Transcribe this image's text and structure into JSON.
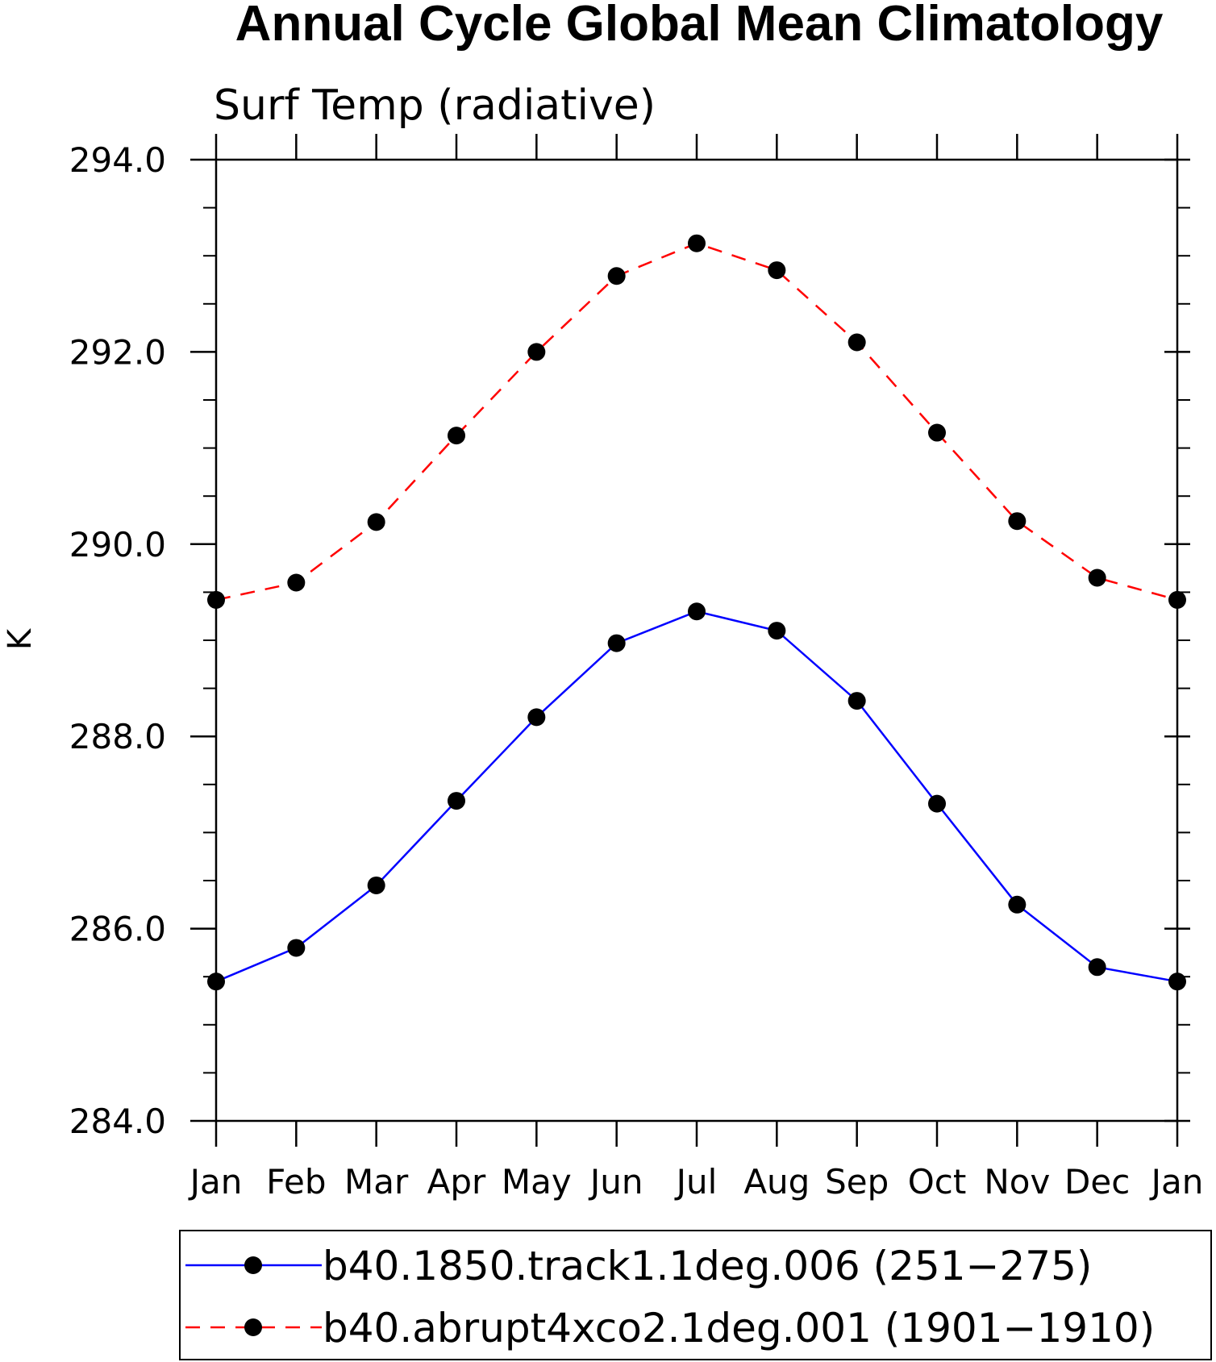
{
  "chart_data": {
    "type": "line",
    "title": "Annual Cycle Global Mean Climatology",
    "subtitle": "Surf Temp (radiative)",
    "xlabel": "",
    "ylabel": "K",
    "categories": [
      "Jan",
      "Feb",
      "Mar",
      "Apr",
      "May",
      "Jun",
      "Jul",
      "Aug",
      "Sep",
      "Oct",
      "Nov",
      "Dec",
      "Jan"
    ],
    "ylim": [
      284.0,
      294.0
    ],
    "yticks": [
      "284.0",
      "286.0",
      "288.0",
      "290.0",
      "292.0",
      "294.0"
    ],
    "ytick_values": [
      284,
      286,
      288,
      290,
      292,
      294
    ],
    "yminor_step": 0.5,
    "grid": false,
    "legend_position": "bottom",
    "series": [
      {
        "name": "b40.1850.track1.1deg.006 (251−275)",
        "color": "#0000ff",
        "line_style": "solid",
        "marker": "filled-circle",
        "values": [
          285.45,
          285.8,
          286.45,
          287.33,
          288.2,
          288.97,
          289.3,
          289.1,
          288.37,
          287.3,
          286.25,
          285.6,
          285.45
        ]
      },
      {
        "name": "b40.abrupt4xco2.1deg.001 (1901−1910)",
        "color": "#ff0000",
        "line_style": "dashed",
        "marker": "filled-circle",
        "values": [
          289.42,
          289.6,
          290.23,
          291.13,
          292.0,
          292.79,
          293.13,
          292.85,
          292.1,
          291.16,
          290.24,
          289.65,
          289.42
        ]
      }
    ]
  }
}
